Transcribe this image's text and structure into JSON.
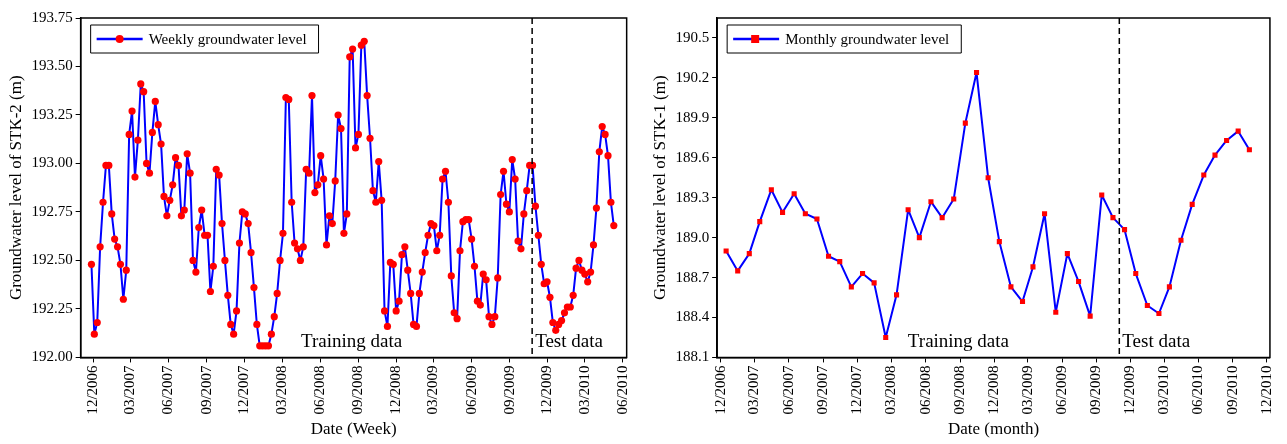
{
  "chart_data": [
    {
      "type": "line",
      "xlabel": "Date (Week)",
      "ylabel": "Groundwater level of STK-2 (m)",
      "legend": "top left",
      "marker": "circle",
      "line_style": "solid",
      "grid": false,
      "xlim": [
        "2006-11-01",
        "2010-06-10"
      ],
      "xticks": [
        {
          "value": "2006-12-01",
          "label": "12/2006"
        },
        {
          "value": "2007-03-01",
          "label": "03/2007"
        },
        {
          "value": "2007-06-01",
          "label": "06/2007"
        },
        {
          "value": "2007-09-01",
          "label": "09/2007"
        },
        {
          "value": "2007-12-01",
          "label": "12/2007"
        },
        {
          "value": "2008-03-01",
          "label": "03/2008"
        },
        {
          "value": "2008-06-01",
          "label": "06/2008"
        },
        {
          "value": "2008-09-01",
          "label": "09/2008"
        },
        {
          "value": "2008-12-01",
          "label": "12/2008"
        },
        {
          "value": "2009-03-01",
          "label": "03/2009"
        },
        {
          "value": "2009-06-01",
          "label": "06/2009"
        },
        {
          "value": "2009-09-01",
          "label": "09/2009"
        },
        {
          "value": "2009-12-01",
          "label": "12/2009"
        },
        {
          "value": "2010-03-01",
          "label": "03/2010"
        },
        {
          "value": "2010-06-01",
          "label": "06/2010"
        }
      ],
      "ylim": [
        192.0,
        193.75
      ],
      "yticks": [
        {
          "value": 192.0,
          "label": "192.00"
        },
        {
          "value": 192.25,
          "label": "192.25"
        },
        {
          "value": 192.5,
          "label": "192.50"
        },
        {
          "value": 192.75,
          "label": "192.75"
        },
        {
          "value": 193.0,
          "label": "193.00"
        },
        {
          "value": 193.25,
          "label": "193.25"
        },
        {
          "value": 193.5,
          "label": "193.50"
        },
        {
          "value": 193.75,
          "label": "193.75"
        }
      ],
      "ref_lines": [
        {
          "axis": "x",
          "value": "2009-10-25",
          "color": "#000000",
          "line_style": "dashed"
        }
      ],
      "annotations": [
        "Training data",
        "Test data"
      ],
      "x": [
        "2006-11-27",
        "2006-12-04",
        "2006-12-11",
        "2006-12-18",
        "2006-12-25",
        "2007-01-01",
        "2007-01-08",
        "2007-01-15",
        "2007-01-22",
        "2007-01-29",
        "2007-02-05",
        "2007-02-12",
        "2007-02-19",
        "2007-02-26",
        "2007-03-05",
        "2007-03-12",
        "2007-03-19",
        "2007-03-26",
        "2007-04-02",
        "2007-04-09",
        "2007-04-16",
        "2007-04-23",
        "2007-04-30",
        "2007-05-07",
        "2007-05-14",
        "2007-05-21",
        "2007-05-28",
        "2007-06-04",
        "2007-06-11",
        "2007-06-18",
        "2007-06-25",
        "2007-07-02",
        "2007-07-09",
        "2007-07-16",
        "2007-07-23",
        "2007-07-30",
        "2007-08-06",
        "2007-08-13",
        "2007-08-20",
        "2007-08-27",
        "2007-09-03",
        "2007-09-10",
        "2007-09-17",
        "2007-09-24",
        "2007-10-01",
        "2007-10-08",
        "2007-10-15",
        "2007-10-22",
        "2007-10-29",
        "2007-11-05",
        "2007-11-12",
        "2007-11-19",
        "2007-11-26",
        "2007-12-03",
        "2007-12-10",
        "2007-12-17",
        "2007-12-24",
        "2007-12-31",
        "2008-01-07",
        "2008-01-14",
        "2008-01-21",
        "2008-01-28",
        "2008-02-04",
        "2008-02-11",
        "2008-02-18",
        "2008-02-25",
        "2008-03-03",
        "2008-03-10",
        "2008-03-17",
        "2008-03-24",
        "2008-03-31",
        "2008-04-07",
        "2008-04-14",
        "2008-04-21",
        "2008-04-28",
        "2008-05-05",
        "2008-05-12",
        "2008-05-19",
        "2008-05-26",
        "2008-06-02",
        "2008-06-09",
        "2008-06-16",
        "2008-06-23",
        "2008-06-30",
        "2008-07-07",
        "2008-07-14",
        "2008-07-21",
        "2008-07-28",
        "2008-08-04",
        "2008-08-11",
        "2008-08-18",
        "2008-08-25",
        "2008-09-01",
        "2008-09-08",
        "2008-09-15",
        "2008-09-22",
        "2008-09-29",
        "2008-10-06",
        "2008-10-13",
        "2008-10-20",
        "2008-10-27",
        "2008-11-03",
        "2008-11-10",
        "2008-11-17",
        "2008-11-24",
        "2008-12-01",
        "2008-12-08",
        "2008-12-15",
        "2008-12-22",
        "2008-12-29",
        "2009-01-05",
        "2009-01-12",
        "2009-01-19",
        "2009-01-26",
        "2009-02-02",
        "2009-02-09",
        "2009-02-16",
        "2009-02-23",
        "2009-03-02",
        "2009-03-09",
        "2009-03-16",
        "2009-03-23",
        "2009-03-30",
        "2009-04-06",
        "2009-04-13",
        "2009-04-20",
        "2009-04-27",
        "2009-05-04",
        "2009-05-11",
        "2009-05-18",
        "2009-05-25",
        "2009-06-01",
        "2009-06-08",
        "2009-06-15",
        "2009-06-22",
        "2009-06-29",
        "2009-07-06",
        "2009-07-13",
        "2009-07-20",
        "2009-07-27",
        "2009-08-03",
        "2009-08-10",
        "2009-08-17",
        "2009-08-24",
        "2009-08-31",
        "2009-09-07",
        "2009-09-14",
        "2009-09-21",
        "2009-09-28",
        "2009-10-05",
        "2009-10-12",
        "2009-10-19",
        "2009-10-26",
        "2009-11-02",
        "2009-11-09",
        "2009-11-16",
        "2009-11-23",
        "2009-11-30",
        "2009-12-07",
        "2009-12-14",
        "2009-12-21",
        "2009-12-28",
        "2010-01-04",
        "2010-01-11",
        "2010-01-18",
        "2010-01-25",
        "2010-02-01",
        "2010-02-08",
        "2010-02-15",
        "2010-02-22",
        "2010-03-01",
        "2010-03-08",
        "2010-03-15",
        "2010-03-22",
        "2010-03-29",
        "2010-04-05",
        "2010-04-12",
        "2010-04-19",
        "2010-04-26",
        "2010-05-03",
        "2010-05-10"
      ],
      "series": [
        {
          "name": "Weekly groundwater level",
          "color": "#0000ff",
          "values": [
            192.48,
            192.12,
            192.18,
            192.57,
            192.8,
            192.99,
            192.99,
            192.74,
            192.61,
            192.57,
            192.48,
            192.3,
            192.45,
            193.15,
            193.27,
            192.93,
            193.12,
            193.41,
            193.37,
            193.0,
            192.95,
            193.16,
            193.32,
            193.2,
            193.1,
            192.83,
            192.73,
            192.81,
            192.89,
            193.03,
            192.99,
            192.73,
            192.76,
            193.05,
            192.95,
            192.5,
            192.44,
            192.67,
            192.76,
            192.63,
            192.63,
            192.34,
            192.47,
            192.97,
            192.94,
            192.69,
            192.5,
            192.32,
            192.17,
            192.12,
            192.24,
            192.59,
            192.75,
            192.74,
            192.69,
            192.54,
            192.36,
            192.17,
            192.06,
            192.06,
            192.06,
            192.06,
            192.12,
            192.21,
            192.33,
            192.5,
            192.64,
            193.34,
            193.33,
            192.8,
            192.59,
            192.56,
            192.5,
            192.57,
            192.97,
            192.95,
            193.35,
            192.85,
            192.89,
            193.04,
            192.92,
            192.58,
            192.73,
            192.69,
            192.91,
            193.25,
            193.18,
            192.64,
            192.74,
            193.55,
            193.59,
            193.08,
            193.15,
            193.61,
            193.63,
            193.35,
            193.13,
            192.86,
            192.8,
            193.01,
            192.81,
            192.24,
            192.16,
            192.49,
            192.48,
            192.24,
            192.29,
            192.53,
            192.57,
            192.45,
            192.33,
            192.17,
            192.16,
            192.33,
            192.44,
            192.54,
            192.63,
            192.69,
            192.68,
            192.55,
            192.63,
            192.92,
            192.96,
            192.8,
            192.42,
            192.23,
            192.2,
            192.55,
            192.7,
            192.71,
            192.71,
            192.61,
            192.47,
            192.29,
            192.27,
            192.43,
            192.4,
            192.21,
            192.17,
            192.21,
            192.41,
            192.84,
            192.96,
            192.79,
            192.75,
            193.02,
            192.92,
            192.6,
            192.56,
            192.74,
            192.86,
            192.99,
            192.99,
            192.78,
            192.63,
            192.48,
            192.38,
            192.39,
            192.31,
            192.18,
            192.14,
            192.17,
            192.19,
            192.23,
            192.26,
            192.26,
            192.32,
            192.46,
            192.5,
            192.45,
            192.43,
            192.39,
            192.44,
            192.58,
            192.77,
            193.06,
            193.19,
            193.15,
            193.04,
            192.8,
            192.68
          ]
        }
      ]
    },
    {
      "type": "line",
      "xlabel": "Date (month)",
      "ylabel": "Groundwater level of STK-1 (m)",
      "legend": "top left",
      "marker": "square",
      "line_style": "solid",
      "grid": false,
      "xlim": [
        "2006-11-21",
        "2010-12-09"
      ],
      "xticks": [
        {
          "value": "2006-12-01",
          "label": "12/2006"
        },
        {
          "value": "2007-03-01",
          "label": "03/2007"
        },
        {
          "value": "2007-06-01",
          "label": "06/2007"
        },
        {
          "value": "2007-09-01",
          "label": "09/2007"
        },
        {
          "value": "2007-12-01",
          "label": "12/2007"
        },
        {
          "value": "2008-03-01",
          "label": "03/2008"
        },
        {
          "value": "2008-06-01",
          "label": "06/2008"
        },
        {
          "value": "2008-09-01",
          "label": "09/2008"
        },
        {
          "value": "2008-12-01",
          "label": "12/2008"
        },
        {
          "value": "2009-03-01",
          "label": "03/2009"
        },
        {
          "value": "2009-06-01",
          "label": "06/2009"
        },
        {
          "value": "2009-09-01",
          "label": "09/2009"
        },
        {
          "value": "2009-12-01",
          "label": "12/2009"
        },
        {
          "value": "2010-03-01",
          "label": "03/2010"
        },
        {
          "value": "2010-06-01",
          "label": "06/2010"
        },
        {
          "value": "2010-09-01",
          "label": "09/2010"
        },
        {
          "value": "2010-12-01",
          "label": "12/2010"
        }
      ],
      "ylim": [
        188.1,
        190.65
      ],
      "yticks": [
        188.1,
        188.4,
        188.7,
        {
          "value": 189.0,
          "label": "189.0"
        },
        189.3,
        189.6,
        189.9,
        190.2,
        190.5
      ],
      "ref_lines": [
        {
          "axis": "x",
          "value": "2009-11-01",
          "color": "#000000",
          "line_style": "dashed"
        }
      ],
      "annotations": [
        "Training data",
        "Test data"
      ],
      "x": [
        "2006-12-15",
        "2007-01-15",
        "2007-02-15",
        "2007-03-15",
        "2007-04-15",
        "2007-05-15",
        "2007-06-15",
        "2007-07-15",
        "2007-08-15",
        "2007-09-15",
        "2007-10-15",
        "2007-11-15",
        "2007-12-15",
        "2008-01-15",
        "2008-02-15",
        "2008-03-15",
        "2008-04-15",
        "2008-05-15",
        "2008-06-15",
        "2008-07-15",
        "2008-08-15",
        "2008-09-15",
        "2008-10-15",
        "2008-11-15",
        "2008-12-15",
        "2009-01-15",
        "2009-02-15",
        "2009-03-15",
        "2009-04-15",
        "2009-05-15",
        "2009-06-15",
        "2009-07-15",
        "2009-08-15",
        "2009-09-15",
        "2009-10-15",
        "2009-11-15",
        "2009-12-15",
        "2010-01-15",
        "2010-02-15",
        "2010-03-15",
        "2010-04-15",
        "2010-05-15",
        "2010-06-15",
        "2010-07-15",
        "2010-08-15",
        "2010-09-15",
        "2010-10-15"
      ],
      "series": [
        {
          "name": "Monthly groundwater level",
          "color": "#0000ff",
          "values": [
            188.9,
            188.75,
            188.88,
            189.12,
            189.36,
            189.19,
            189.33,
            189.18,
            189.14,
            188.86,
            188.82,
            188.63,
            188.73,
            188.66,
            188.25,
            188.57,
            189.21,
            189.0,
            189.27,
            189.15,
            189.29,
            189.86,
            190.24,
            189.45,
            188.97,
            188.63,
            188.52,
            188.78,
            189.18,
            188.44,
            188.88,
            188.67,
            188.41,
            189.32,
            189.15,
            189.06,
            188.73,
            188.49,
            188.43,
            188.63,
            188.98,
            189.25,
            189.47,
            189.62,
            189.73,
            189.8,
            189.66
          ]
        }
      ]
    }
  ]
}
